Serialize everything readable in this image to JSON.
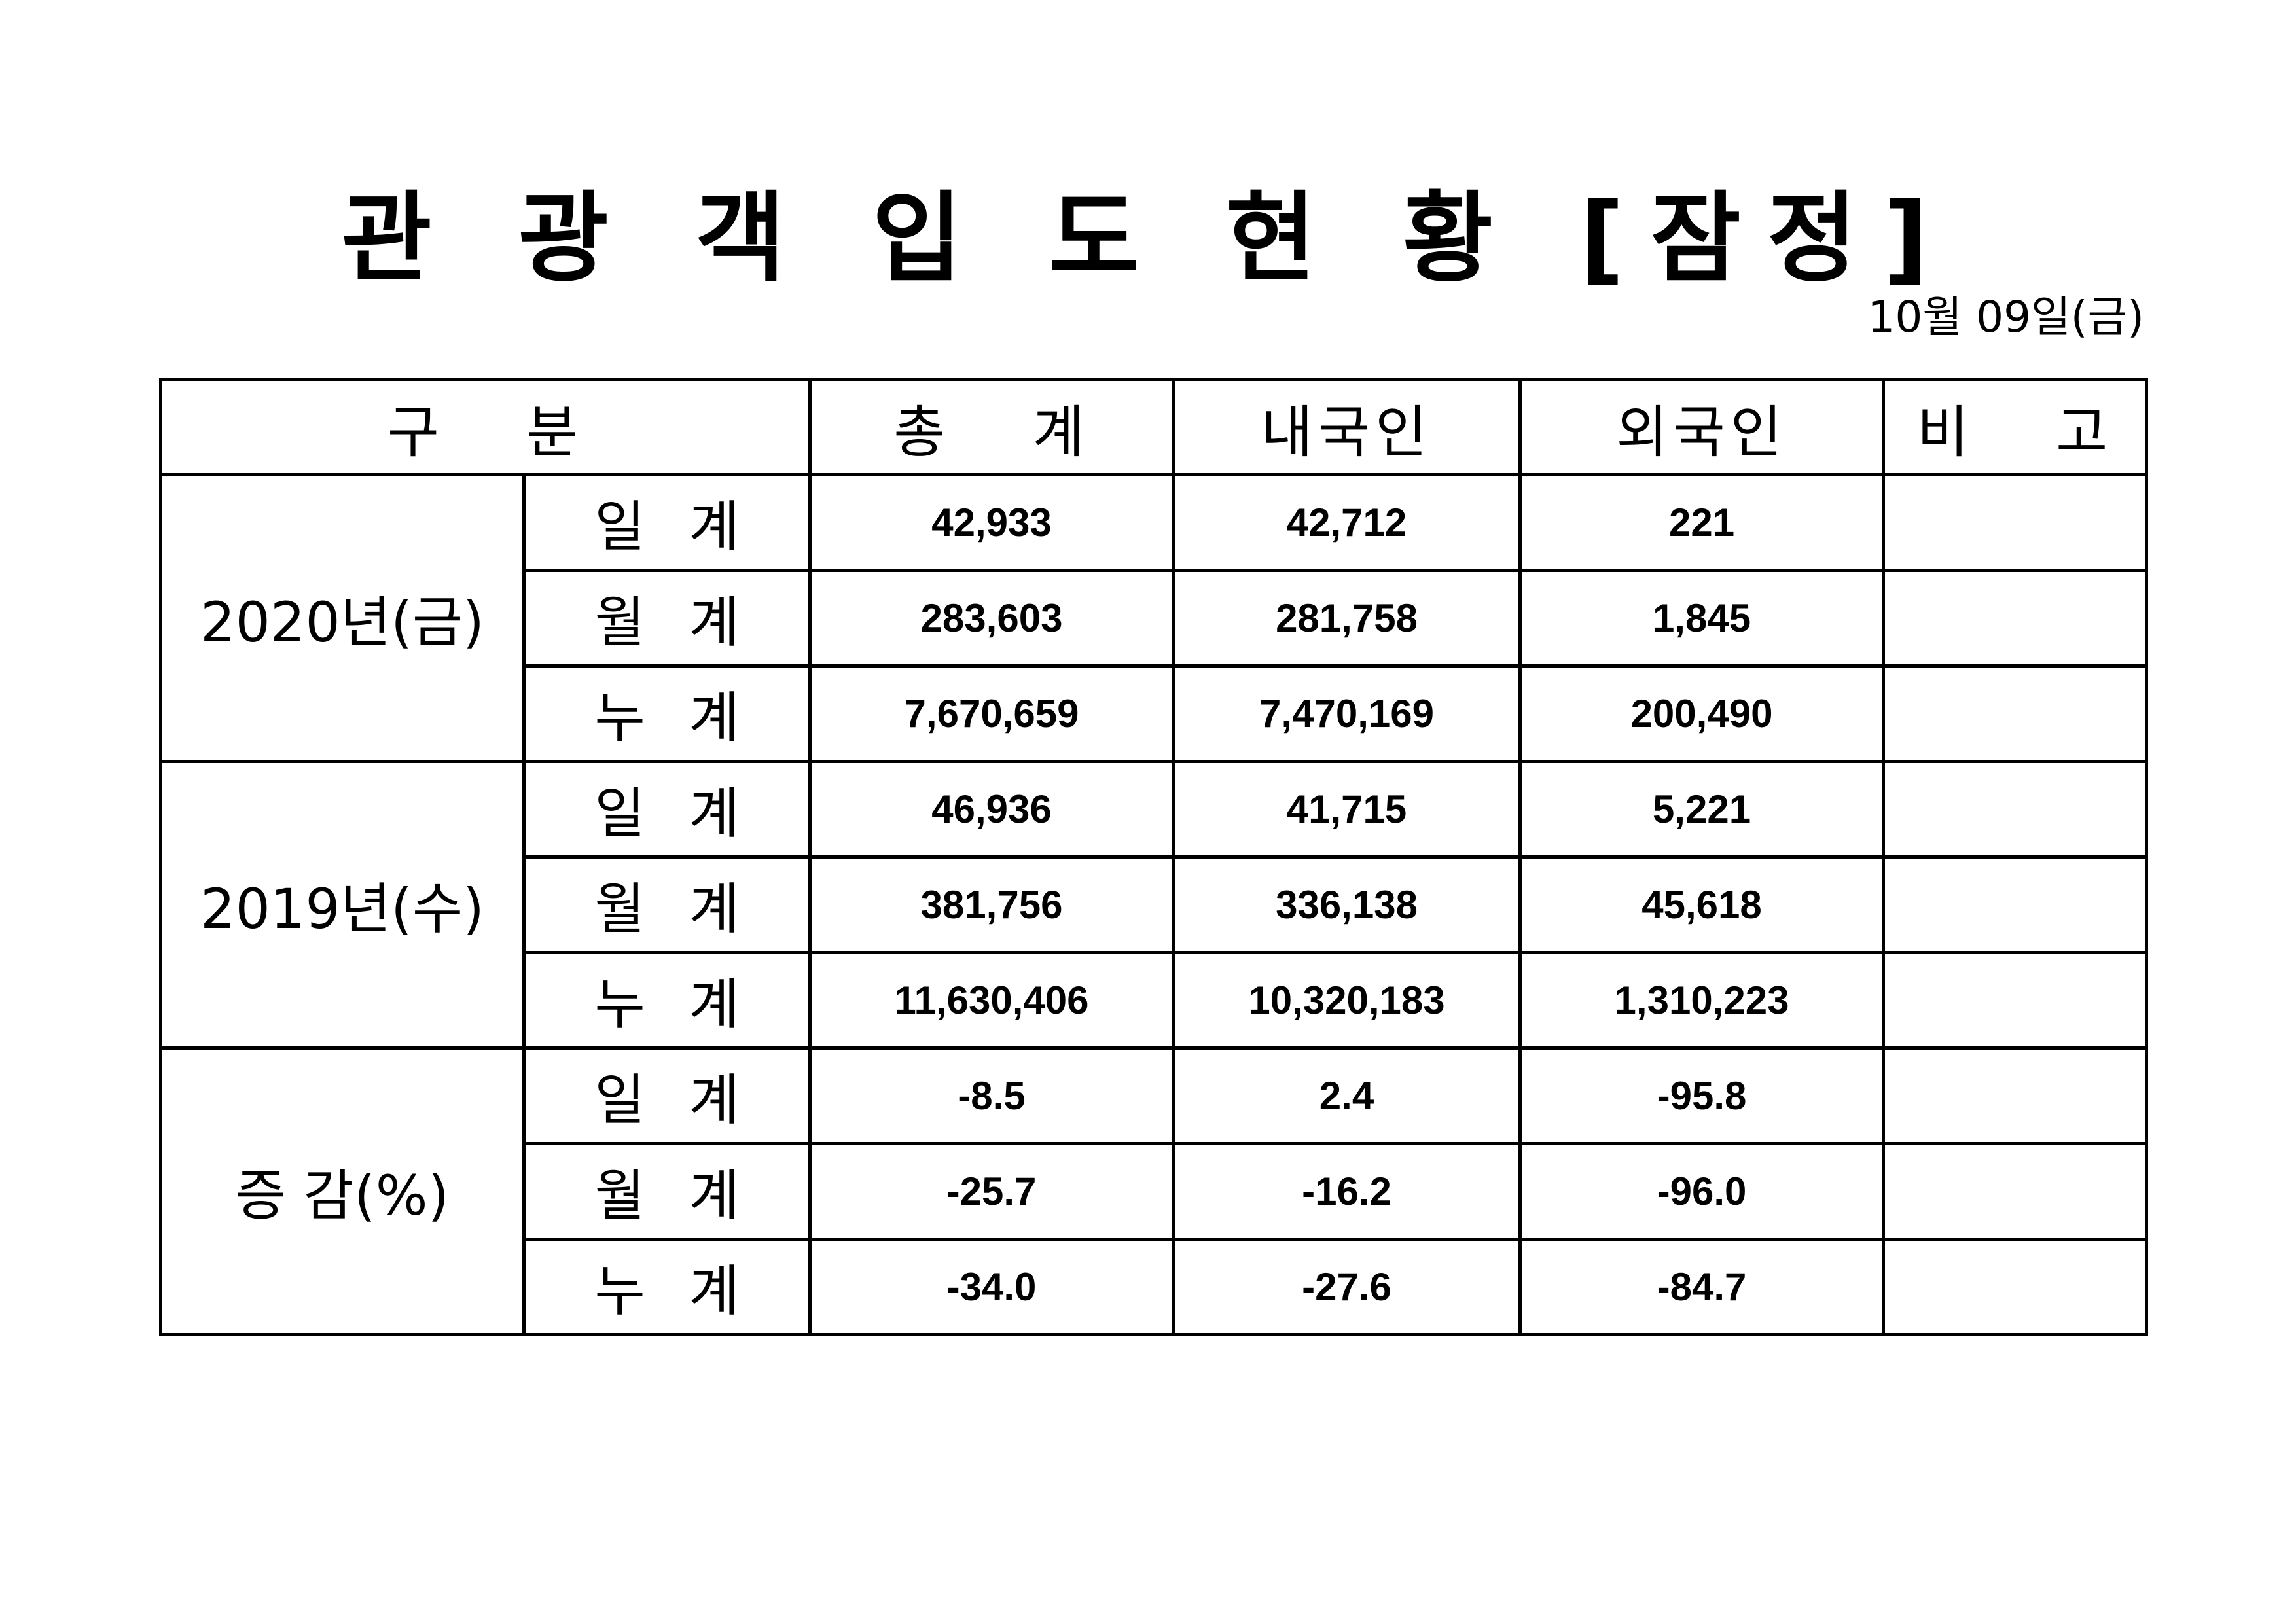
{
  "title": "관 광 객 입 도 현 황 [잠정]",
  "date": "10월 09일(금)",
  "headers": {
    "category": "구 분",
    "total": "총 계",
    "domestic": "내국인",
    "foreign": "외국인",
    "remarks": "비 고"
  },
  "groups": [
    {
      "label": "2020년(금)",
      "rows": [
        {
          "sub": "일 계",
          "total": "42,933",
          "domestic": "42,712",
          "foreign": "221",
          "remarks": ""
        },
        {
          "sub": "월 계",
          "total": "283,603",
          "domestic": "281,758",
          "foreign": "1,845",
          "remarks": ""
        },
        {
          "sub": "누 계",
          "total": "7,670,659",
          "domestic": "7,470,169",
          "foreign": "200,490",
          "remarks": ""
        }
      ]
    },
    {
      "label": "2019년(수)",
      "rows": [
        {
          "sub": "일 계",
          "total": "46,936",
          "domestic": "41,715",
          "foreign": "5,221",
          "remarks": ""
        },
        {
          "sub": "월 계",
          "total": "381,756",
          "domestic": "336,138",
          "foreign": "45,618",
          "remarks": ""
        },
        {
          "sub": "누 계",
          "total": "11,630,406",
          "domestic": "10,320,183",
          "foreign": "1,310,223",
          "remarks": ""
        }
      ]
    },
    {
      "label": "증 감(%)",
      "rows": [
        {
          "sub": "일 계",
          "total": "-8.5",
          "domestic": "2.4",
          "foreign": "-95.8",
          "remarks": ""
        },
        {
          "sub": "월 계",
          "total": "-25.7",
          "domestic": "-16.2",
          "foreign": "-96.0",
          "remarks": ""
        },
        {
          "sub": "누 계",
          "total": "-34.0",
          "domestic": "-27.6",
          "foreign": "-84.7",
          "remarks": ""
        }
      ]
    }
  ]
}
